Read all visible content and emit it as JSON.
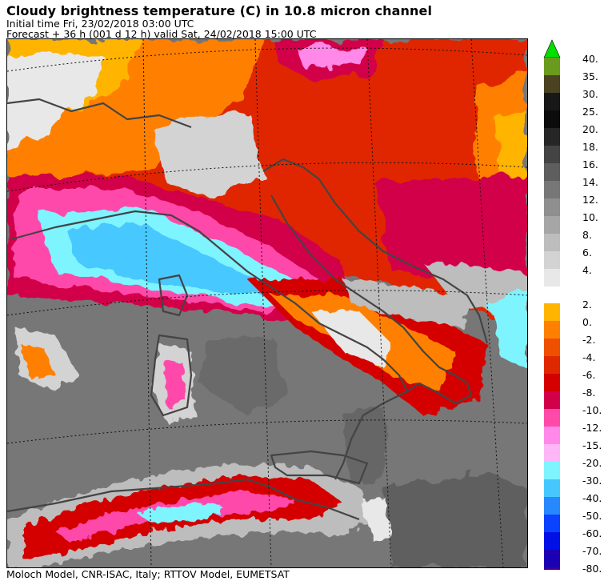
{
  "header": {
    "title": "Cloudy brightness temperature (C) in   10.8 micron channel",
    "initial_time": "Initial time  Fri, 23/02/2018  03:00 UTC",
    "forecast": "Forecast  +  36 h  (001 d 12 h)  valid Sat, 24/02/2018 15:00 UTC"
  },
  "footer": "Moloch Model, CNR-ISAC, Italy; RTTOV Model, EUMETSAT",
  "legend": {
    "upper": [
      {
        "label": "40.",
        "color": "#6a9b1f"
      },
      {
        "label": "35.",
        "color": "#4a4220"
      },
      {
        "label": "30.",
        "color": "#181818"
      },
      {
        "label": "25.",
        "color": "#0c0c0c"
      },
      {
        "label": "20.",
        "color": "#262626"
      },
      {
        "label": "18.",
        "color": "#444444"
      },
      {
        "label": "16.",
        "color": "#5e5e5e"
      },
      {
        "label": "14.",
        "color": "#777777"
      },
      {
        "label": "12.",
        "color": "#8f8f8f"
      },
      {
        "label": "10.",
        "color": "#a6a6a6"
      },
      {
        "label": "8.",
        "color": "#bdbdbd"
      },
      {
        "label": "6.",
        "color": "#d3d3d3"
      },
      {
        "label": "4.",
        "color": "#e8e8e8"
      }
    ],
    "upper_arrow_color": "#00e000",
    "lower": [
      {
        "label": "2.",
        "color": "#ffb400"
      },
      {
        "label": "0.",
        "color": "#ff8000"
      },
      {
        "label": "-2.",
        "color": "#ee5000"
      },
      {
        "label": "-4.",
        "color": "#e02800"
      },
      {
        "label": "-6.",
        "color": "#d40000"
      },
      {
        "label": "-8.",
        "color": "#d2004a"
      },
      {
        "label": "-10.",
        "color": "#ff4aaa"
      },
      {
        "label": "-12.",
        "color": "#ff88e8"
      },
      {
        "label": "-15.",
        "color": "#ffb6f6"
      },
      {
        "label": "-20.",
        "color": "#7ef4ff"
      },
      {
        "label": "-30.",
        "color": "#46c8ff"
      },
      {
        "label": "-40.",
        "color": "#2888ff"
      },
      {
        "label": "-50.",
        "color": "#0a42ff"
      },
      {
        "label": "-60.",
        "color": "#0010e6"
      },
      {
        "label": "-70.",
        "color": "#1c00b4"
      },
      {
        "label": "-80.",
        "color": "#3c008c"
      }
    ],
    "lower_arrow_color": "#3c008c"
  }
}
